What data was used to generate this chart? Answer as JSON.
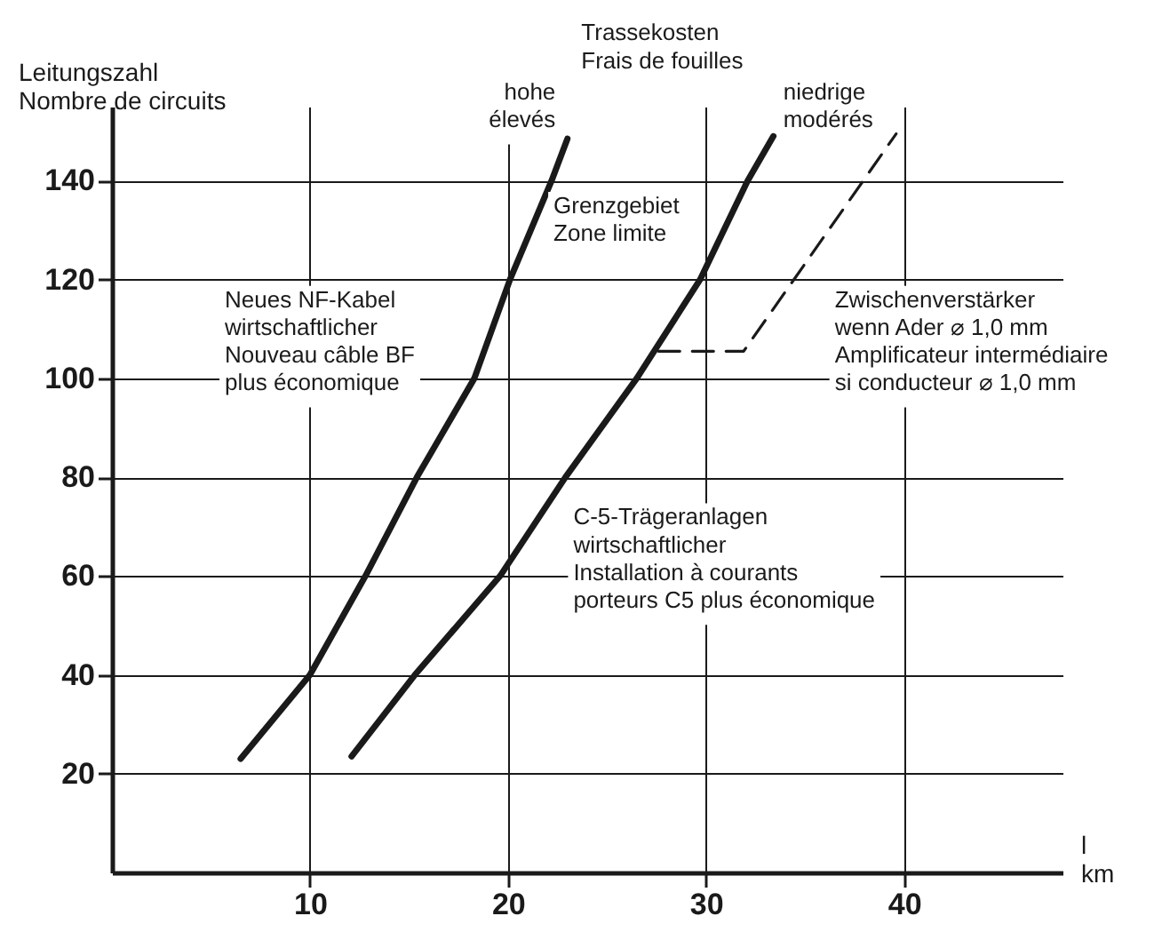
{
  "chart_data": {
    "type": "line",
    "xlabel": "l\nkm",
    "ylabel": "Leitungszahl\nNombre de circuits",
    "annotations": [
      "Trassekosten\nFrais de fouilles",
      "Grenzgebiet\nZone limite",
      "Neues NF-Kabel\nwirtschaftlicher\nNouveau câble BF\nplus économique",
      "Zwischenverstärker\nwenn Ader ⌀ 1,0 mm\nAmplificateur intermédiaire\nsi conducteur ⌀ 1,0 mm",
      "C-5-Trägeranlagen\nwirtschaftlicher\nInstallation à courants\nporteurs C5 plus économique"
    ],
    "series": [
      {
        "name": "hohe\nélevés",
        "color": "#1a1a1a",
        "line_style": "solid",
        "x": [
          6.5,
          10,
          12.8,
          15.4,
          18.3,
          20.1,
          22.2,
          23.0
        ],
        "values": [
          23,
          40,
          60,
          80,
          100,
          120,
          140,
          148.5
        ]
      },
      {
        "name": "niedrige\nmodérés",
        "color": "#1a1a1a",
        "line_style": "solid",
        "x": [
          12.1,
          15.3,
          19.6,
          22.9,
          26.5,
          29.7,
          32.1,
          33.4
        ],
        "values": [
          23.5,
          40,
          60,
          80,
          100,
          120,
          140,
          149
        ]
      },
      {
        "color": "#1a1a1a",
        "line_style": "dashed",
        "x": [
          27.6,
          31.9,
          39.6
        ],
        "values": [
          105.5,
          105.5,
          149.5
        ]
      }
    ],
    "xlim": [
      0,
      48
    ],
    "ylim": [
      0,
      155
    ],
    "xticks": [
      10,
      20,
      30,
      40
    ],
    "yticks": [
      20,
      40,
      60,
      80,
      100,
      120,
      140
    ],
    "grid": true,
    "marker": "none"
  }
}
